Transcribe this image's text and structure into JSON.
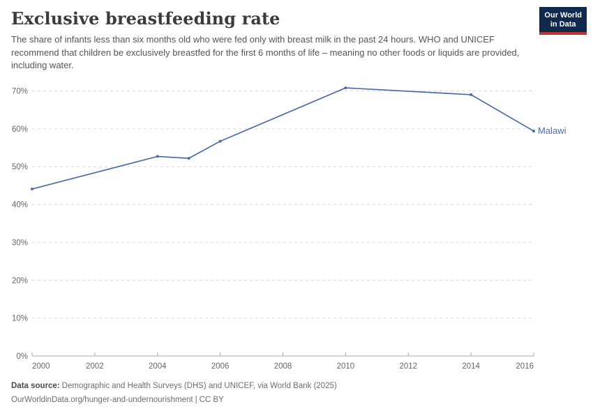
{
  "header": {
    "title": "Exclusive breastfeeding rate",
    "subtitle": "The share of infants less than six months old who were fed only with breast milk in the past 24 hours. WHO and UNICEF recommend that children be exclusively breastfed for the first 6 months of life – meaning no other foods or liquids are provided, including water.",
    "logo": {
      "line1": "Our World",
      "line2": "in Data",
      "bg_color": "#102a4d",
      "accent_color": "#c0362c"
    }
  },
  "chart_data": {
    "type": "line",
    "title": "Exclusive breastfeeding rate",
    "xlabel": "",
    "ylabel": "",
    "xlim": [
      2000,
      2016
    ],
    "ylim": [
      0,
      70
    ],
    "x_ticks": [
      2000,
      2002,
      2004,
      2006,
      2008,
      2010,
      2012,
      2014,
      2016
    ],
    "y_ticks": [
      0,
      10,
      20,
      30,
      40,
      50,
      60,
      70
    ],
    "y_tick_suffix": "%",
    "grid": "horizontal-dashed",
    "legend_position": "end-of-line",
    "series": [
      {
        "name": "Malawi",
        "color": "#4c6ba9",
        "x": [
          2000,
          2004,
          2005,
          2006,
          2010,
          2014,
          2016
        ],
        "values": [
          44.1,
          52.7,
          52.2,
          56.7,
          70.8,
          69,
          59.4
        ]
      }
    ],
    "style": {
      "gridline_color": "#dcdcdc",
      "axis_line_color": "#a8a8a8",
      "tick_color": "#a8a8a8",
      "tick_label_color": "#666666"
    }
  },
  "footer": {
    "source_label": "Data source:",
    "source_text": "Demographic and Health Surveys (DHS) and UNICEF, via World Bank (2025)",
    "url": "OurWorldinData.org/hunger-and-undernourishment",
    "separator": "|",
    "license": "CC BY"
  }
}
